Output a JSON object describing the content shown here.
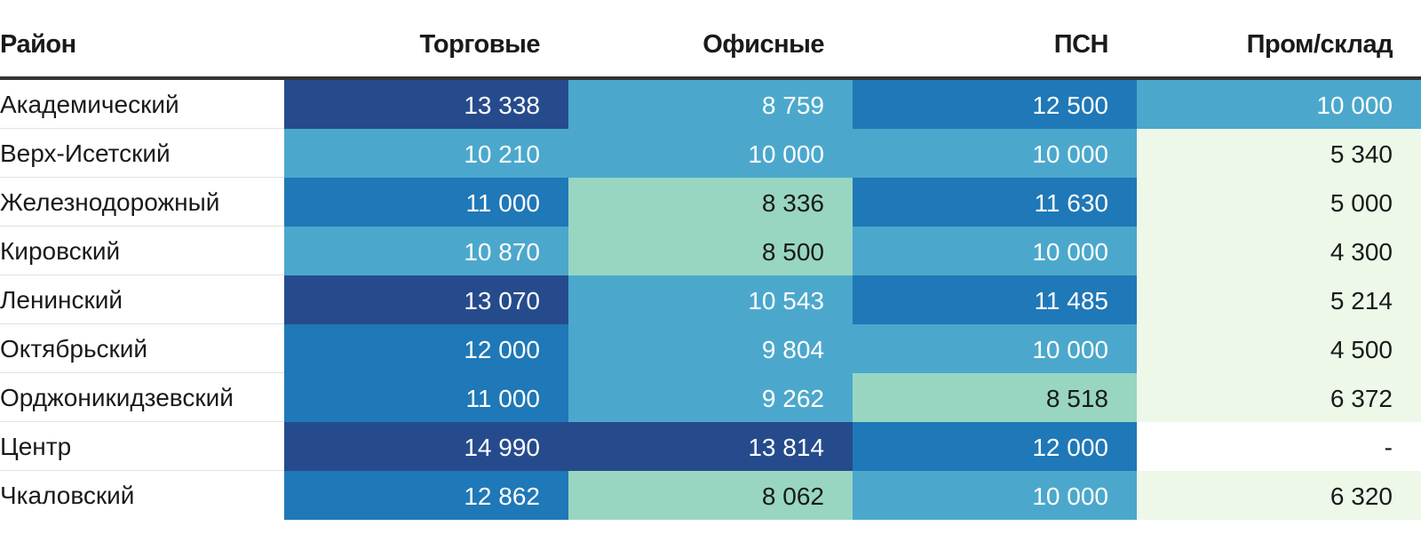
{
  "chart_data": {
    "type": "table",
    "columns": [
      "Район",
      "Торговые",
      "Офисные",
      "ПСН",
      "Пром/склад"
    ],
    "rows": [
      {
        "district": "Академический",
        "values": [
          "13 338",
          "8 759",
          "12 500",
          "10 000"
        ],
        "numeric": [
          13338,
          8759,
          12500,
          10000
        ]
      },
      {
        "district": "Верх-Исетский",
        "values": [
          "10 210",
          "10 000",
          "10 000",
          "5 340"
        ],
        "numeric": [
          10210,
          10000,
          10000,
          5340
        ]
      },
      {
        "district": "Железнодорожный",
        "values": [
          "11 000",
          "8 336",
          "11 630",
          "5 000"
        ],
        "numeric": [
          11000,
          8336,
          11630,
          5000
        ]
      },
      {
        "district": "Кировский",
        "values": [
          "10 870",
          "8 500",
          "10 000",
          "4 300"
        ],
        "numeric": [
          10870,
          8500,
          10000,
          4300
        ]
      },
      {
        "district": "Ленинский",
        "values": [
          "13 070",
          "10 543",
          "11 485",
          "5 214"
        ],
        "numeric": [
          13070,
          10543,
          11485,
          5214
        ]
      },
      {
        "district": "Октябрьский",
        "values": [
          "12 000",
          "9 804",
          "10 000",
          "4 500"
        ],
        "numeric": [
          12000,
          9804,
          10000,
          4500
        ]
      },
      {
        "district": "Орджоникидзевский",
        "values": [
          "11 000",
          "9 262",
          "8 518",
          "6 372"
        ],
        "numeric": [
          11000,
          9262,
          8518,
          6372
        ]
      },
      {
        "district": "Центр",
        "values": [
          "14 990",
          "13 814",
          "12 000",
          "-"
        ],
        "numeric": [
          14990,
          13814,
          12000,
          null
        ]
      },
      {
        "district": "Чкаловский",
        "values": [
          "12 862",
          "8 062",
          "10 000",
          "6 320"
        ],
        "numeric": [
          12862,
          8062,
          10000,
          6320
        ]
      }
    ],
    "color_scale": {
      "thresholds": [
        6000,
        8000,
        8600,
        11000,
        12900
      ],
      "colors": [
        "#edf8e9",
        "#edf8e9",
        "#98d6c1",
        "#4ba8cc",
        "#1f78b7",
        "#264b8d"
      ],
      "light_text": "#ffffff",
      "dark_text": "#1a1a1a",
      "empty_color": "#ffffff"
    }
  }
}
